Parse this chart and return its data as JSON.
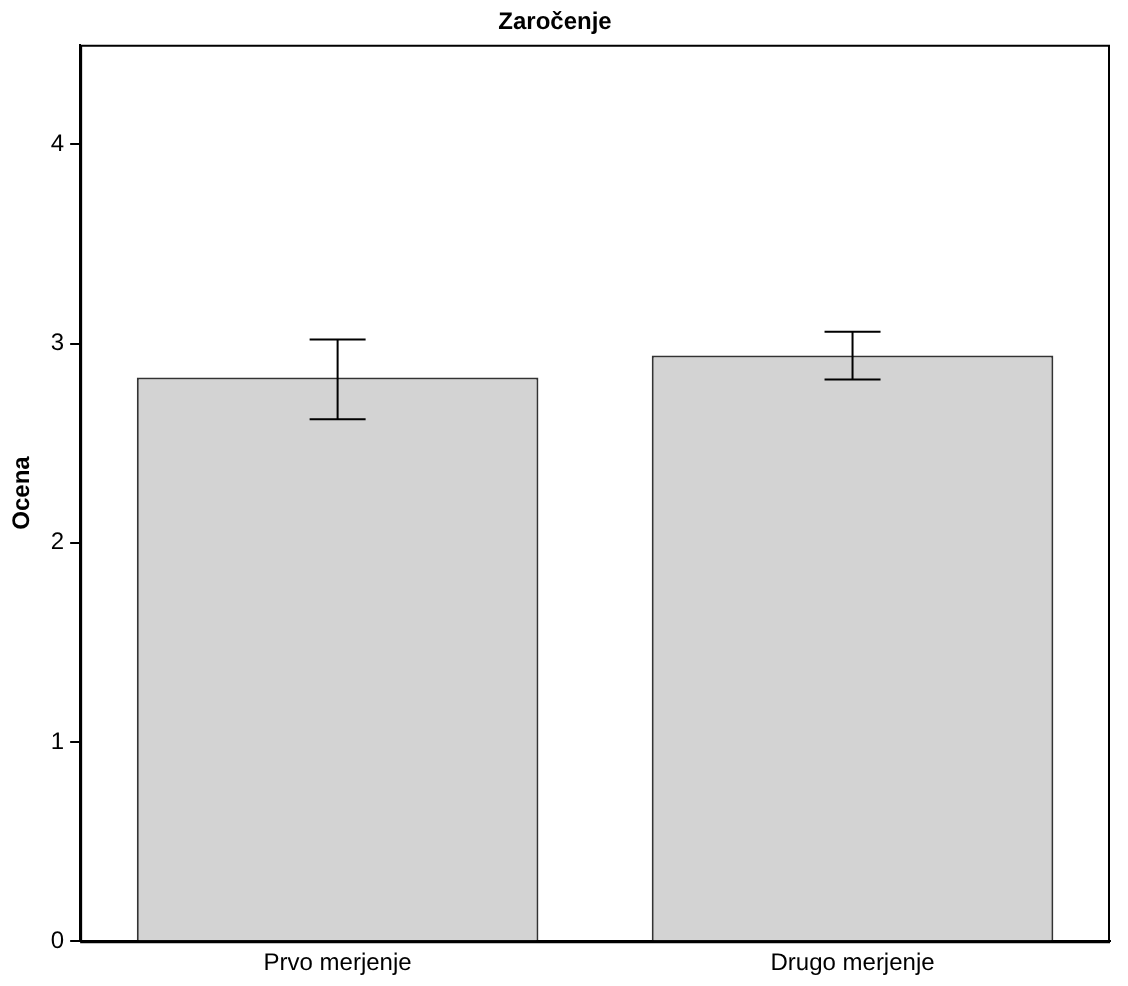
{
  "chart_data": {
    "type": "bar",
    "title": "Zaročenje",
    "ylabel": "Ocena",
    "categories": [
      "Prvo merjenje",
      "Drugo merjenje"
    ],
    "values": [
      2.83,
      2.94
    ],
    "color": "#d3d3d3",
    "errors": [
      [
        2.62,
        3.02
      ],
      [
        2.82,
        3.06
      ]
    ],
    "ylim": [
      0,
      4.5
    ],
    "yticks": [
      0,
      1,
      2,
      3,
      4
    ],
    "grid": false,
    "legend": false
  }
}
